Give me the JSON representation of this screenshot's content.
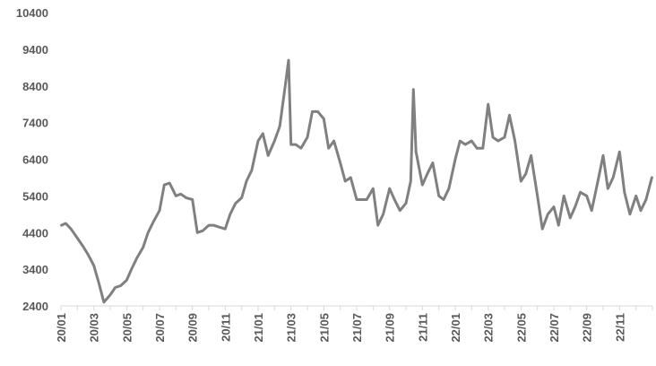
{
  "chart_data": {
    "type": "line",
    "title": "",
    "xlabel": "",
    "ylabel": "",
    "ylim": [
      2400,
      10400
    ],
    "yticks": [
      2400,
      3400,
      4400,
      5400,
      6400,
      7400,
      8400,
      9400,
      10400
    ],
    "xticks": [
      "20/01",
      "20/03",
      "20/05",
      "20/07",
      "20/09",
      "20/11",
      "21/01",
      "21/03",
      "21/05",
      "21/07",
      "21/09",
      "21/11",
      "22/01",
      "22/03",
      "22/05",
      "22/07",
      "22/09",
      "22/11"
    ],
    "grid": false,
    "legend": "none",
    "line_color": "#808080",
    "series": [
      {
        "x": [
          "2020-01-02",
          "2020-01-10",
          "2020-01-20",
          "2020-02-01",
          "2020-02-10",
          "2020-02-20",
          "2020-03-01",
          "2020-03-10",
          "2020-03-20",
          "2020-04-01",
          "2020-04-10",
          "2020-04-20",
          "2020-05-01",
          "2020-05-10",
          "2020-05-20",
          "2020-06-01",
          "2020-06-10",
          "2020-06-20",
          "2020-07-01",
          "2020-07-10",
          "2020-07-20",
          "2020-08-01",
          "2020-08-10",
          "2020-08-20",
          "2020-09-01",
          "2020-09-10",
          "2020-09-20",
          "2020-10-01",
          "2020-10-10",
          "2020-10-20",
          "2020-11-01",
          "2020-11-10",
          "2020-11-20",
          "2020-12-01",
          "2020-12-10",
          "2020-12-20",
          "2021-01-01",
          "2021-01-10",
          "2021-01-20",
          "2021-02-01",
          "2021-02-10",
          "2021-02-20",
          "2021-02-25",
          "2021-03-01",
          "2021-03-10",
          "2021-03-20",
          "2021-04-01",
          "2021-04-10",
          "2021-04-20",
          "2021-05-01",
          "2021-05-10",
          "2021-05-20",
          "2021-06-01",
          "2021-06-10",
          "2021-06-20",
          "2021-07-01",
          "2021-07-10",
          "2021-07-20",
          "2021-08-01",
          "2021-08-10",
          "2021-08-20",
          "2021-09-01",
          "2021-09-10",
          "2021-09-20",
          "2021-10-01",
          "2021-10-10",
          "2021-10-15",
          "2021-10-20",
          "2021-11-01",
          "2021-11-10",
          "2021-11-20",
          "2021-12-01",
          "2021-12-10",
          "2021-12-20",
          "2022-01-01",
          "2022-01-10",
          "2022-01-20",
          "2022-02-01",
          "2022-02-10",
          "2022-02-20",
          "2022-03-01",
          "2022-03-10",
          "2022-03-20",
          "2022-04-01",
          "2022-04-10",
          "2022-04-20",
          "2022-05-01",
          "2022-05-10",
          "2022-05-20",
          "2022-06-01",
          "2022-06-10",
          "2022-06-20",
          "2022-07-01",
          "2022-07-10",
          "2022-07-20",
          "2022-08-01",
          "2022-08-10",
          "2022-08-20",
          "2022-09-01",
          "2022-09-10",
          "2022-09-20",
          "2022-10-01",
          "2022-10-10",
          "2022-10-20",
          "2022-11-01",
          "2022-11-10",
          "2022-11-20",
          "2022-12-01",
          "2022-12-10",
          "2022-12-20",
          "2022-12-31"
        ],
        "values": [
          4600,
          4650,
          4500,
          4250,
          4050,
          3800,
          3500,
          3050,
          2500,
          2700,
          2900,
          2950,
          3100,
          3400,
          3700,
          4000,
          4400,
          4700,
          5000,
          5700,
          5750,
          5400,
          5450,
          5350,
          5300,
          4400,
          4450,
          4600,
          4600,
          4550,
          4500,
          4900,
          5200,
          5350,
          5800,
          6100,
          6900,
          7100,
          6500,
          6900,
          7300,
          8500,
          9100,
          6800,
          6800,
          6700,
          7000,
          7700,
          7700,
          7500,
          6700,
          6900,
          6300,
          5800,
          5900,
          5300,
          5300,
          5300,
          5600,
          4600,
          4900,
          5600,
          5300,
          5000,
          5200,
          5800,
          8300,
          6600,
          5700,
          6000,
          6300,
          5400,
          5300,
          5600,
          6400,
          6900,
          6800,
          6900,
          6700,
          6700,
          7900,
          7000,
          6900,
          7000,
          7600,
          6900,
          5800,
          6000,
          6500,
          5400,
          4500,
          4900,
          5100,
          4600,
          5400,
          4800,
          5100,
          5500,
          5400,
          5000,
          5700,
          6500,
          5600,
          5900,
          6600,
          5500,
          4900,
          5400,
          5000,
          5300,
          5900
        ]
      }
    ]
  }
}
